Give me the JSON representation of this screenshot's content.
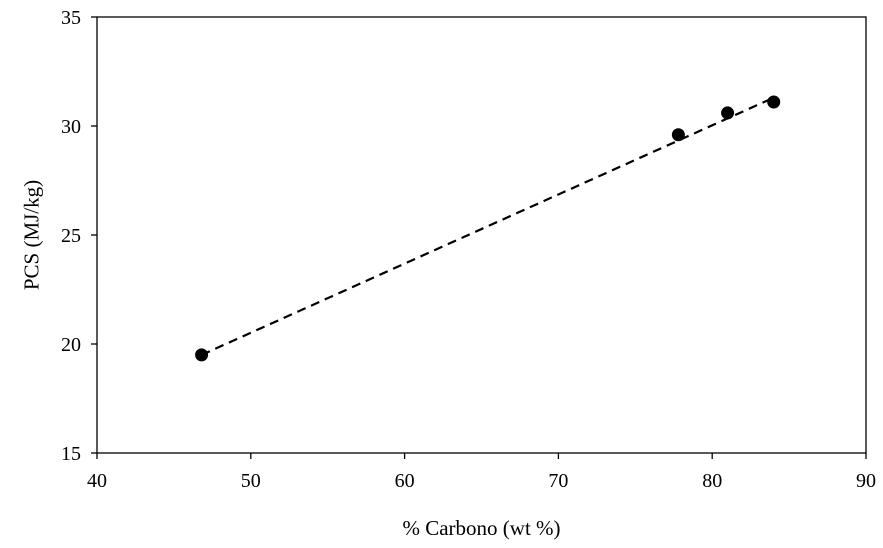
{
  "chart_data": {
    "type": "scatter",
    "title": "",
    "xlabel": "% Carbono (wt %)",
    "ylabel": "PCS (MJ/kg)",
    "xlim": [
      40,
      90
    ],
    "ylim": [
      15,
      35
    ],
    "xticks": [
      40,
      50,
      60,
      70,
      80,
      90
    ],
    "yticks": [
      15,
      20,
      25,
      30,
      35
    ],
    "grid": false,
    "legend": "none",
    "series": [
      {
        "marker": "circle",
        "color": "#000000",
        "points": [
          {
            "x": 46.8,
            "y": 19.5
          },
          {
            "x": 77.8,
            "y": 29.6
          },
          {
            "x": 81.0,
            "y": 30.6
          },
          {
            "x": 84.0,
            "y": 31.1
          }
        ]
      }
    ],
    "trendline": {
      "style": "dashed",
      "color": "#000000",
      "x": [
        46.8,
        84.0
      ],
      "y": [
        19.5,
        31.3
      ]
    }
  }
}
